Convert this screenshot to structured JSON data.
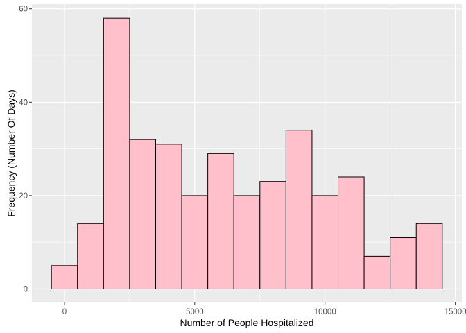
{
  "chart_data": {
    "type": "bar",
    "subtype": "histogram",
    "title": "",
    "xlabel": "Number of People Hospitalized",
    "ylabel": "Frequency (Number Of Days)",
    "bin_width": 1000,
    "bin_centers": [
      0,
      1000,
      2000,
      3000,
      4000,
      5000,
      6000,
      7000,
      8000,
      9000,
      10000,
      11000,
      12000,
      13000,
      14000
    ],
    "values": [
      5,
      14,
      58,
      32,
      31,
      20,
      29,
      20,
      23,
      34,
      20,
      24,
      7,
      11,
      14
    ],
    "xlim": [
      -1250,
      15250
    ],
    "ylim": [
      -2.9,
      61
    ],
    "x_ticks": [
      0,
      5000,
      10000,
      15000
    ],
    "x_tick_labels": [
      "0",
      "5000",
      "10000",
      "15000"
    ],
    "y_ticks": [
      0,
      20,
      40,
      60
    ],
    "y_tick_labels": [
      "0",
      "20",
      "40",
      "60"
    ],
    "grid": true,
    "colors": {
      "panel_background": "#EBEBEB",
      "grid_line": "#FFFFFF",
      "bar_fill": "#FFC0CB",
      "bar_outline": "#000000"
    }
  }
}
